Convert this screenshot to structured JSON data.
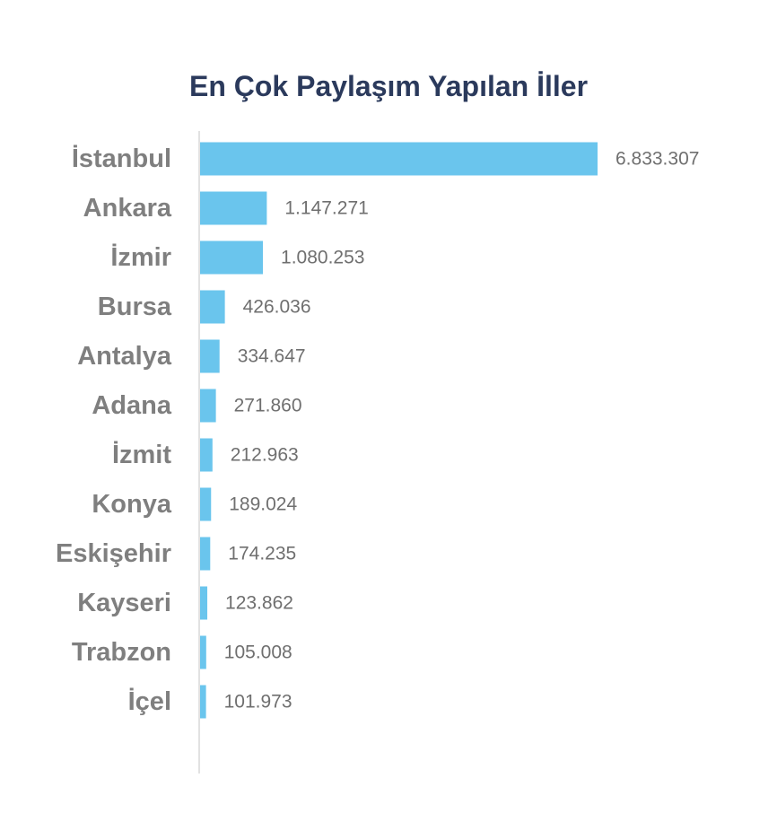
{
  "chart_data": {
    "type": "bar",
    "orientation": "horizontal",
    "title": "En Çok Paylaşım Yapılan İller",
    "categories": [
      "İstanbul",
      "Ankara",
      "İzmir",
      "Bursa",
      "Antalya",
      "Adana",
      "İzmit",
      "Konya",
      "Eskişehir",
      "Kayseri",
      "Trabzon",
      "İçel"
    ],
    "values": [
      6833307,
      1147271,
      1080253,
      426036,
      334647,
      271860,
      212963,
      189024,
      174235,
      123862,
      105008,
      101973
    ],
    "value_labels": [
      "6.833.307",
      "1.147.271",
      "1.080.253",
      "426.036",
      "334.647",
      "271.860",
      "212.963",
      "189.024",
      "174.235",
      "123.862",
      "105.008",
      "101.973"
    ],
    "xlabel": "",
    "ylabel": "",
    "xlim": [
      0,
      6833307
    ],
    "grid": false,
    "legend": "none",
    "colors": {
      "bar": "#6ac5ed",
      "axis": "#d9d9d9",
      "category_text": "#7f7f7f",
      "value_text": "#6f6f6f",
      "title_text": "#2b3a5c"
    }
  }
}
